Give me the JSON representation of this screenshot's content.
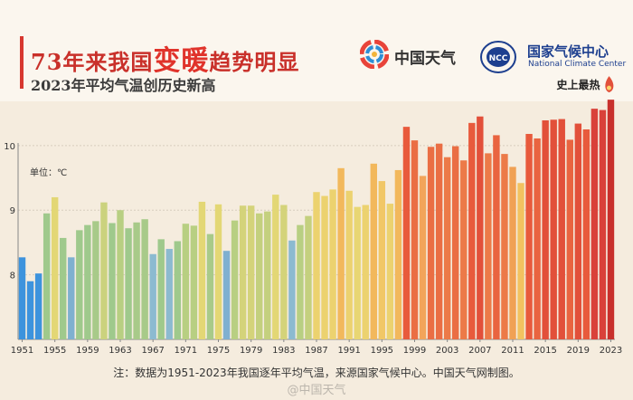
{
  "header": {
    "title_pre": "73年来我国",
    "title_big": "变暖",
    "title_post": "趋势明显",
    "subtitle": "2023年平均气温创历史新高"
  },
  "logos": {
    "cma_weather": "中国天气",
    "ncc_cn": "国家气候中心",
    "ncc_en": "National Climate Center",
    "ncc_mark": "NCC"
  },
  "footer": {
    "note": "注：数据为1951-2023年我国逐年平均气温，来源国家气候中心。中国天气网制图。",
    "watermark": "@中国天气"
  },
  "chart_data": {
    "type": "bar",
    "unit_label": "单位：℃",
    "record_label": "史上最热",
    "ylim": [
      7,
      10.6
    ],
    "yticks": [
      8,
      9,
      10
    ],
    "x_tick_labels": [
      "1951",
      "1955",
      "1959",
      "1963",
      "1967",
      "1971",
      "1975",
      "1979",
      "1983",
      "1987",
      "1991",
      "1995",
      "1999",
      "2003",
      "2007",
      "2011",
      "2015",
      "2019",
      "2023"
    ],
    "start_year": 1951,
    "categories": [
      "1951",
      "1952",
      "1953",
      "1954",
      "1955",
      "1956",
      "1957",
      "1958",
      "1959",
      "1960",
      "1961",
      "1962",
      "1963",
      "1964",
      "1965",
      "1966",
      "1967",
      "1968",
      "1969",
      "1970",
      "1971",
      "1972",
      "1973",
      "1974",
      "1975",
      "1976",
      "1977",
      "1978",
      "1979",
      "1980",
      "1981",
      "1982",
      "1983",
      "1984",
      "1985",
      "1986",
      "1987",
      "1988",
      "1989",
      "1990",
      "1991",
      "1992",
      "1993",
      "1994",
      "1995",
      "1996",
      "1997",
      "1998",
      "1999",
      "2000",
      "2001",
      "2002",
      "2003",
      "2004",
      "2005",
      "2006",
      "2007",
      "2008",
      "2009",
      "2010",
      "2011",
      "2012",
      "2013",
      "2014",
      "2015",
      "2016",
      "2017",
      "2018",
      "2019",
      "2020",
      "2021",
      "2022",
      "2023"
    ],
    "values": [
      8.27,
      7.9,
      8.02,
      8.95,
      9.2,
      8.57,
      8.27,
      8.69,
      8.77,
      8.83,
      9.12,
      8.8,
      9.0,
      8.72,
      8.81,
      8.86,
      8.32,
      8.55,
      8.4,
      8.52,
      8.79,
      8.76,
      9.13,
      8.63,
      9.09,
      8.37,
      8.84,
      9.07,
      9.07,
      8.95,
      8.98,
      9.24,
      9.08,
      8.53,
      8.77,
      8.91,
      9.28,
      9.22,
      9.32,
      9.65,
      9.3,
      9.05,
      9.08,
      9.72,
      9.45,
      9.1,
      9.62,
      10.29,
      10.08,
      9.53,
      9.98,
      10.03,
      9.82,
      9.99,
      9.77,
      10.35,
      10.45,
      9.88,
      10.16,
      9.87,
      9.67,
      9.42,
      10.18,
      10.11,
      10.39,
      10.4,
      10.41,
      10.09,
      10.34,
      10.25,
      10.57,
      10.55,
      10.71
    ],
    "bar_colors": [
      "#3d93dd",
      "#3d93dd",
      "#3d93dd",
      "#9fc98c",
      "#e3d775",
      "#9fc98c",
      "#7fb0d0",
      "#9fc98c",
      "#9fc98c",
      "#a8ca89",
      "#cbd27e",
      "#9fc98c",
      "#b8cf82",
      "#9fc98c",
      "#a8ca89",
      "#a8ca89",
      "#8cbad0",
      "#9fc98c",
      "#8cbad0",
      "#9fc98c",
      "#b8cf82",
      "#b8cf82",
      "#e3d775",
      "#a8ca89",
      "#e3d775",
      "#7fb0d0",
      "#b8cf82",
      "#d4d37a",
      "#d4d37a",
      "#c4d07e",
      "#c4d07e",
      "#e3d775",
      "#d4d37a",
      "#8cbad0",
      "#b8cf82",
      "#c4d07e",
      "#ecd26f",
      "#ecd26f",
      "#ecd26f",
      "#f2b85c",
      "#ecd26f",
      "#e8d673",
      "#ecd26f",
      "#f2b85c",
      "#f1c766",
      "#ecd26f",
      "#f2b85c",
      "#e85a3c",
      "#ea6e44",
      "#f2a45a",
      "#ea6e44",
      "#ea6e44",
      "#ec7a48",
      "#ea6e44",
      "#ec7a48",
      "#e85a3c",
      "#e2503a",
      "#ec7a48",
      "#e96440",
      "#ec7a48",
      "#f0a154",
      "#f2c260",
      "#e85a3c",
      "#e96440",
      "#e2503a",
      "#e2503a",
      "#e2503a",
      "#e96440",
      "#e2503a",
      "#e85a3c",
      "#d9413a",
      "#d9413a",
      "#c8302c"
    ]
  }
}
